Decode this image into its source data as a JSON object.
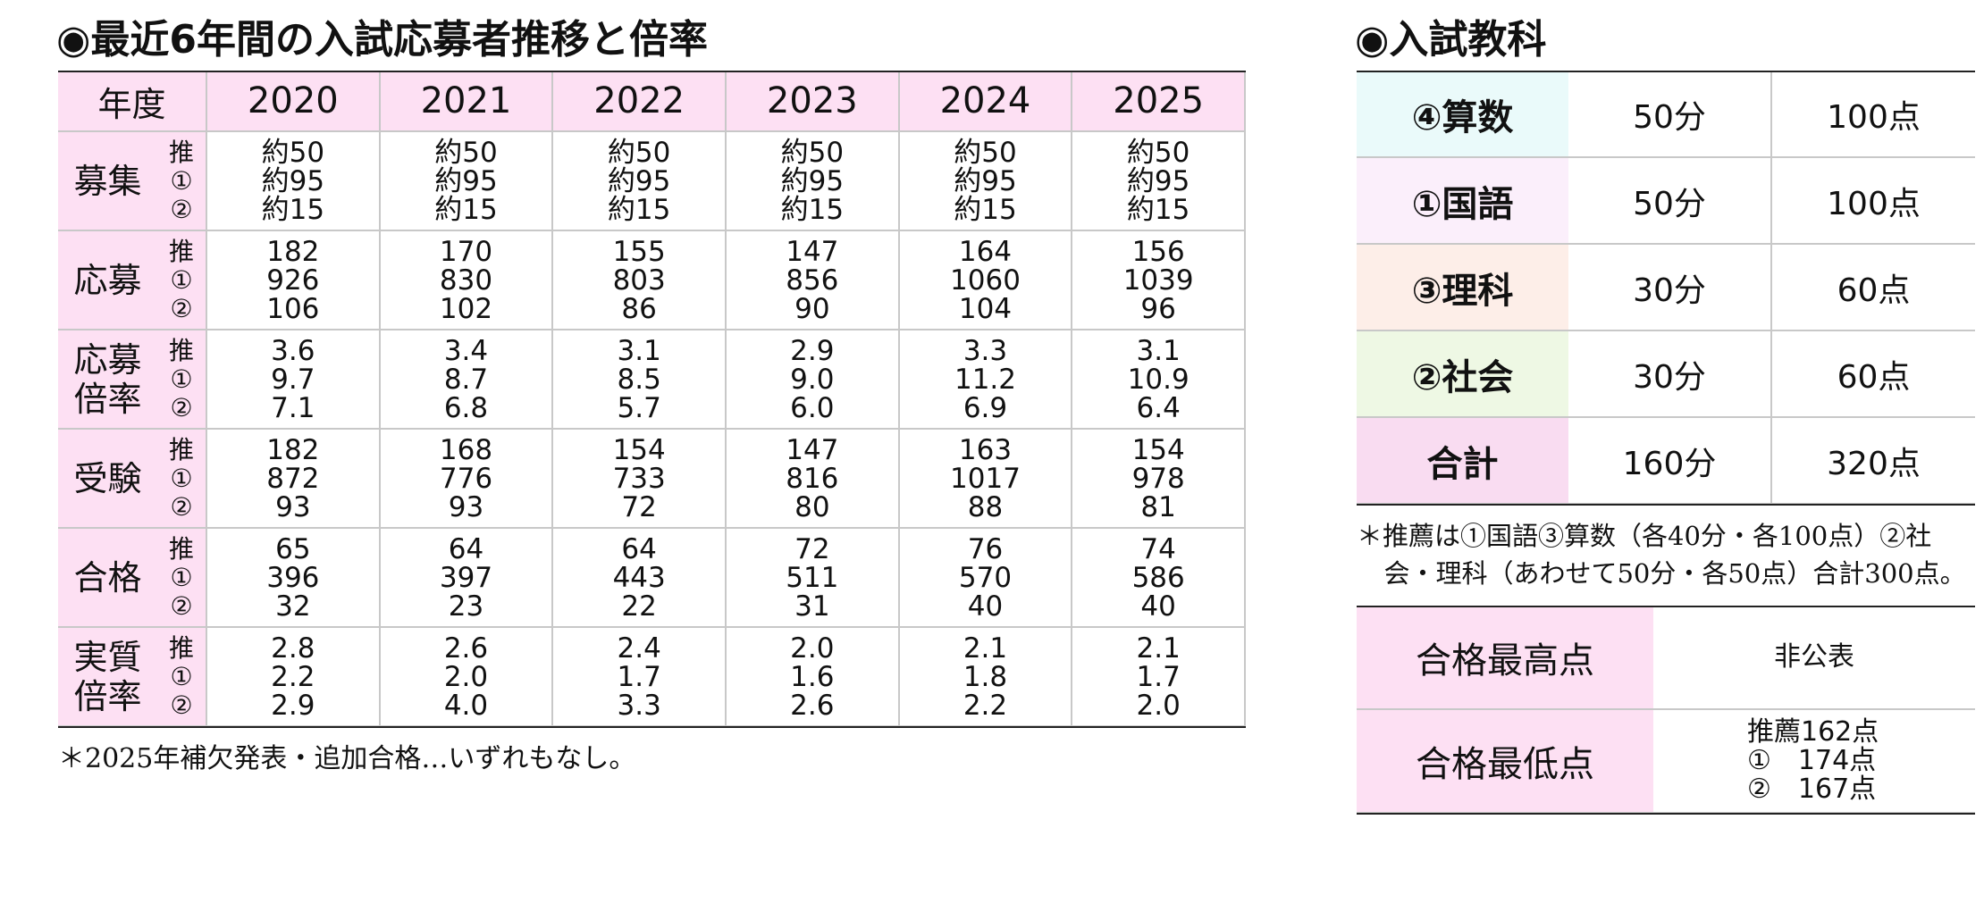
{
  "left": {
    "title": "◉最近6年間の入試応募者推移と倍率",
    "header": {
      "label": "年度",
      "years": [
        "2020",
        "2021",
        "2022",
        "2023",
        "2024",
        "2025"
      ]
    },
    "rows": [
      {
        "label": [
          "募集"
        ],
        "sub": [
          "推",
          "①",
          "②"
        ],
        "cells": [
          [
            "約50",
            "約95",
            "約15"
          ],
          [
            "約50",
            "約95",
            "約15"
          ],
          [
            "約50",
            "約95",
            "約15"
          ],
          [
            "約50",
            "約95",
            "約15"
          ],
          [
            "約50",
            "約95",
            "約15"
          ],
          [
            "約50",
            "約95",
            "約15"
          ]
        ]
      },
      {
        "label": [
          "応募"
        ],
        "sub": [
          "推",
          "①",
          "②"
        ],
        "cells": [
          [
            "182",
            "926",
            "106"
          ],
          [
            "170",
            "830",
            "102"
          ],
          [
            "155",
            "803",
            "86"
          ],
          [
            "147",
            "856",
            "90"
          ],
          [
            "164",
            "1060",
            "104"
          ],
          [
            "156",
            "1039",
            "96"
          ]
        ]
      },
      {
        "label": [
          "応募",
          "倍率"
        ],
        "sub": [
          "推",
          "①",
          "②"
        ],
        "cells": [
          [
            "3.6",
            "9.7",
            "7.1"
          ],
          [
            "3.4",
            "8.7",
            "6.8"
          ],
          [
            "3.1",
            "8.5",
            "5.7"
          ],
          [
            "2.9",
            "9.0",
            "6.0"
          ],
          [
            "3.3",
            "11.2",
            "6.9"
          ],
          [
            "3.1",
            "10.9",
            "6.4"
          ]
        ]
      },
      {
        "label": [
          "受験"
        ],
        "sub": [
          "推",
          "①",
          "②"
        ],
        "cells": [
          [
            "182",
            "872",
            "93"
          ],
          [
            "168",
            "776",
            "93"
          ],
          [
            "154",
            "733",
            "72"
          ],
          [
            "147",
            "816",
            "80"
          ],
          [
            "163",
            "1017",
            "88"
          ],
          [
            "154",
            "978",
            "81"
          ]
        ]
      },
      {
        "label": [
          "合格"
        ],
        "sub": [
          "推",
          "①",
          "②"
        ],
        "cells": [
          [
            "65",
            "396",
            "32"
          ],
          [
            "64",
            "397",
            "23"
          ],
          [
            "64",
            "443",
            "22"
          ],
          [
            "72",
            "511",
            "31"
          ],
          [
            "76",
            "570",
            "40"
          ],
          [
            "74",
            "586",
            "40"
          ]
        ]
      },
      {
        "label": [
          "実質",
          "倍率"
        ],
        "sub": [
          "推",
          "①",
          "②"
        ],
        "cells": [
          [
            "2.8",
            "2.2",
            "2.9"
          ],
          [
            "2.6",
            "2.0",
            "4.0"
          ],
          [
            "2.4",
            "1.7",
            "3.3"
          ],
          [
            "2.0",
            "1.6",
            "2.6"
          ],
          [
            "2.1",
            "1.8",
            "2.2"
          ],
          [
            "2.1",
            "1.7",
            "2.0"
          ]
        ]
      }
    ],
    "note": "＊2025年補欠発表・追加合格…いずれもなし。"
  },
  "right": {
    "title": "◉入試教科",
    "subjects": [
      {
        "name": "④算数",
        "time": "50分",
        "points": "100点",
        "color": "#eafafa"
      },
      {
        "name": "①国語",
        "time": "50分",
        "points": "100点",
        "color": "#fbeffb"
      },
      {
        "name": "③理科",
        "time": "30分",
        "points": "60点",
        "color": "#fdeee8"
      },
      {
        "name": "②社会",
        "time": "30分",
        "points": "60点",
        "color": "#eef8e4"
      },
      {
        "name": "合計",
        "time": "160分",
        "points": "320点",
        "color": "#f9dcf1"
      }
    ],
    "note": "＊推薦は①国語③算数（各40分・各100点）②社会・理科（あわせて50分・各50点）合計300点。",
    "scores": [
      {
        "label": "合格最高点",
        "value": [
          "非公表"
        ]
      },
      {
        "label": "合格最低点",
        "value": [
          "推薦162点",
          "①　174点",
          "②　167点"
        ]
      }
    ]
  }
}
